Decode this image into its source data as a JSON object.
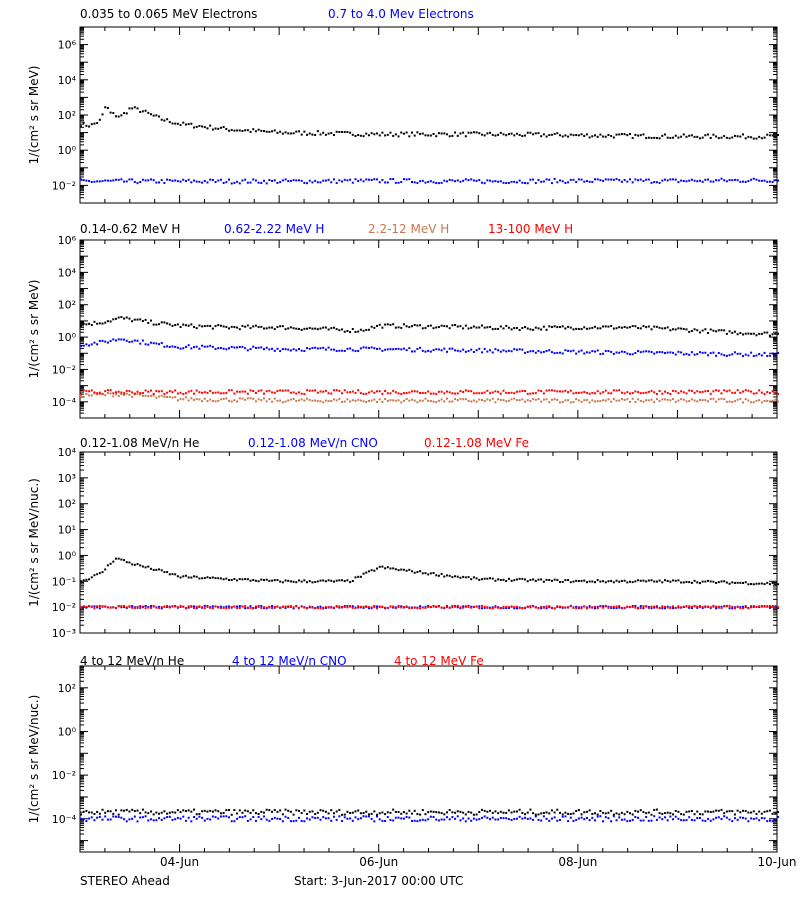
{
  "chart_data": [
    {
      "type": "scatter",
      "scale": "log",
      "ylabel": "1/(cm² s sr MeV)",
      "ylim": [
        0.001,
        10000000
      ],
      "yticks": [
        {
          "v": 0.01,
          "t": "10⁻²"
        },
        {
          "v": 1,
          "t": "10⁰"
        },
        {
          "v": 100,
          "t": "10²"
        },
        {
          "v": 10000,
          "t": "10⁴"
        },
        {
          "v": 1000000,
          "t": "10⁶"
        }
      ],
      "series": [
        {
          "name": "0.035 to 0.065 MeV Electrons",
          "color": "#000000",
          "x": [
            0,
            0.1,
            0.2,
            0.25,
            0.3,
            0.4,
            0.5,
            0.6,
            0.8,
            1,
            1.5,
            2,
            3,
            4,
            5,
            6,
            7
          ],
          "y": [
            30,
            25,
            50,
            350,
            120,
            80,
            250,
            180,
            60,
            30,
            15,
            10,
            8,
            8,
            7,
            6,
            6
          ]
        },
        {
          "name": "0.7 to 4.0 Mev Electrons",
          "color": "#0000ff",
          "x": [
            0,
            1,
            2,
            3,
            4,
            5,
            6,
            7
          ],
          "y": [
            0.017,
            0.017,
            0.017,
            0.018,
            0.017,
            0.018,
            0.018,
            0.02
          ]
        }
      ]
    },
    {
      "type": "scatter",
      "scale": "log",
      "ylabel": "1/(cm² s sr MeV)",
      "ylim": [
        1e-05,
        1000000
      ],
      "yticks": [
        {
          "v": 0.0001,
          "t": "10⁻⁴"
        },
        {
          "v": 0.01,
          "t": "10⁻²"
        },
        {
          "v": 1,
          "t": "10⁰"
        },
        {
          "v": 100,
          "t": "10²"
        },
        {
          "v": 10000,
          "t": "10⁴"
        },
        {
          "v": 1000000,
          "t": "10⁶"
        }
      ],
      "series": [
        {
          "name": "0.14-0.62 MeV H",
          "color": "#000000",
          "x": [
            0,
            0.2,
            0.4,
            0.7,
            1,
            1.5,
            2,
            2.8,
            3,
            3.5,
            4,
            4.5,
            5,
            5.5,
            6,
            6.5,
            7
          ],
          "y": [
            6,
            8,
            15,
            8,
            5,
            4,
            4,
            2.5,
            5,
            4.5,
            4,
            3.5,
            4,
            4,
            3,
            2,
            1.5
          ]
        },
        {
          "name": "0.62-2.22 MeV H",
          "color": "#0000ff",
          "x": [
            0,
            0.2,
            0.4,
            0.7,
            1,
            2,
            3,
            4,
            5,
            6,
            7
          ],
          "y": [
            0.35,
            0.45,
            0.8,
            0.4,
            0.25,
            0.18,
            0.18,
            0.15,
            0.12,
            0.1,
            0.08
          ]
        },
        {
          "name": "2.2-12 MeV H",
          "color": "#c87850",
          "x": [
            0,
            0.4,
            1,
            2,
            3,
            4,
            5,
            6,
            7
          ],
          "y": [
            0.00025,
            0.0003,
            0.00015,
            0.00012,
            0.00012,
            0.00012,
            0.00012,
            0.00012,
            0.00012
          ]
        },
        {
          "name": "13-100 MeV H",
          "color": "#ff0000",
          "x": [
            0,
            1,
            2,
            3,
            4,
            5,
            6,
            7
          ],
          "y": [
            0.0004,
            0.0004,
            0.0004,
            0.0004,
            0.0004,
            0.0004,
            0.0004,
            0.0004
          ]
        }
      ]
    },
    {
      "type": "scatter",
      "scale": "log",
      "ylabel": "1/(cm² s sr MeV/nuc.)",
      "ylim": [
        0.001,
        10000
      ],
      "yticks": [
        {
          "v": 0.001,
          "t": "10⁻³"
        },
        {
          "v": 0.01,
          "t": "10⁻²"
        },
        {
          "v": 0.1,
          "t": "10⁻¹"
        },
        {
          "v": 1,
          "t": "10⁰"
        },
        {
          "v": 10,
          "t": "10¹"
        },
        {
          "v": 100,
          "t": "10²"
        },
        {
          "v": 1000,
          "t": "10³"
        },
        {
          "v": 10000,
          "t": "10⁴"
        }
      ],
      "series": [
        {
          "name": "0.12-1.08 MeV/n He",
          "color": "#000000",
          "x": [
            0,
            0.2,
            0.35,
            0.5,
            0.8,
            1,
            1.5,
            2,
            2.7,
            3,
            3.5,
            4,
            5,
            6,
            7
          ],
          "y": [
            0.1,
            0.2,
            0.8,
            0.5,
            0.25,
            0.15,
            0.12,
            0.1,
            0.1,
            0.35,
            0.2,
            0.12,
            0.1,
            0.1,
            0.08
          ]
        },
        {
          "name": "0.12-1.08 MeV/n CNO",
          "color": "#0000ff",
          "x": [
            0,
            1,
            2,
            3,
            4,
            5,
            6,
            7
          ],
          "y": [
            0.01,
            0.01,
            0.01,
            0.01,
            0.01,
            0.01,
            0.01,
            0.01
          ]
        },
        {
          "name": "0.12-1.08 MeV Fe",
          "color": "#ff0000",
          "x": [
            0,
            1,
            2,
            3,
            4,
            5,
            6,
            7
          ],
          "y": [
            0.01,
            0.01,
            0.01,
            0.01,
            0.01,
            0.01,
            0.01,
            0.01
          ]
        }
      ]
    },
    {
      "type": "scatter",
      "scale": "log",
      "ylabel": "1/(cm² s sr MeV/nuc.)",
      "ylim": [
        3e-06,
        1000
      ],
      "yticks": [
        {
          "v": 0.0001,
          "t": "10⁻⁴"
        },
        {
          "v": 0.01,
          "t": "10⁻²"
        },
        {
          "v": 1,
          "t": "10⁰"
        },
        {
          "v": 100,
          "t": "10²"
        }
      ],
      "series": [
        {
          "name": "4 to 12 MeV/n He",
          "color": "#000000",
          "x": [
            0,
            1,
            2,
            3,
            4,
            5,
            6,
            7
          ],
          "y": [
            0.0002,
            0.0002,
            0.0002,
            0.0002,
            0.0002,
            0.0002,
            0.0002,
            0.0002
          ]
        },
        {
          "name": "4 to 12 MeV/n CNO",
          "color": "#0000ff",
          "x": [
            0,
            1,
            2,
            3,
            4,
            5,
            6,
            7
          ],
          "y": [
            0.0001,
            0.0001,
            0.0001,
            0.0001,
            0.0001,
            0.0001,
            0.0001,
            0.0001
          ]
        },
        {
          "name": "4 to 12 MeV Fe",
          "color": "#ff0000",
          "x": [],
          "y": []
        }
      ]
    }
  ],
  "x_axis": {
    "unit": "days since start",
    "xlim": [
      0,
      7
    ],
    "ticks": [
      {
        "v": 1,
        "t": "04-Jun"
      },
      {
        "v": 3,
        "t": "06-Jun"
      },
      {
        "v": 5,
        "t": "08-Jun"
      },
      {
        "v": 7,
        "t": "10-Jun"
      }
    ]
  },
  "footer": {
    "spacecraft": "STEREO Ahead",
    "start": "Start:  3-Jun-2017 00:00 UTC"
  }
}
